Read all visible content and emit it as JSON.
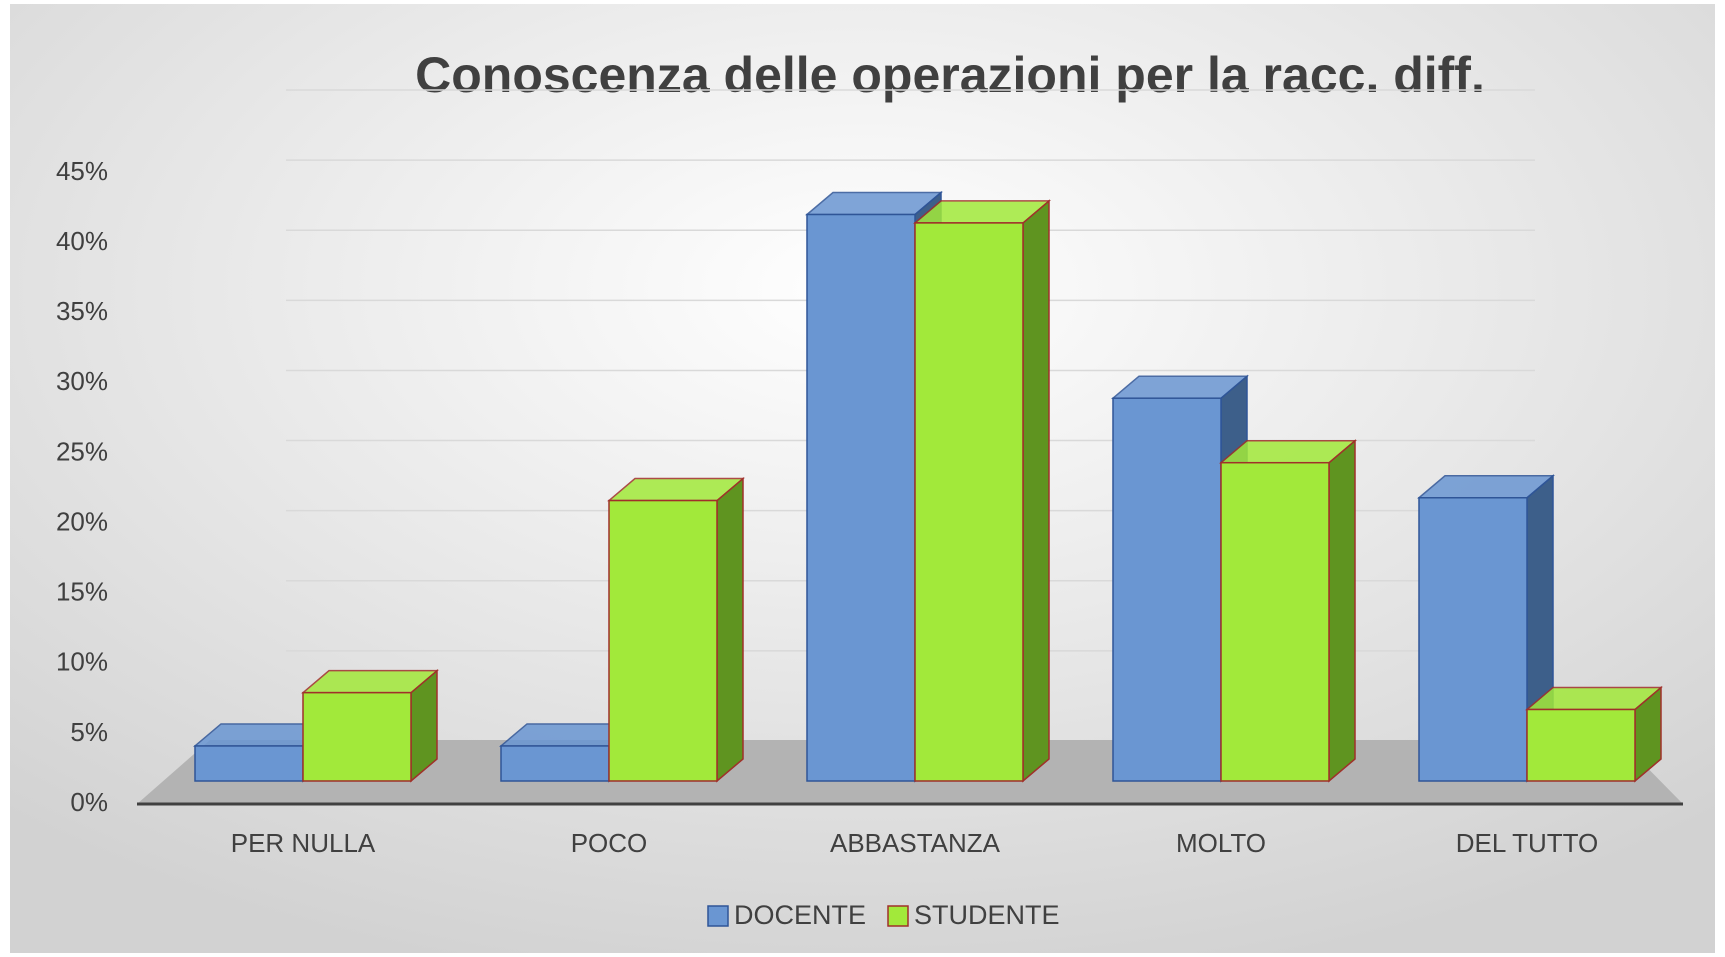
{
  "chart_data": {
    "type": "bar",
    "title": "Conoscenza delle operazioni per la racc. diff.",
    "categories": [
      "PER NULLA",
      "POCO",
      "ABBASTANZA",
      "MOLTO",
      "DEL TUTTO"
    ],
    "series": [
      {
        "name": "DOCENTE",
        "color": "#6a96d2",
        "values": [
          2.5,
          2.5,
          40.4,
          27.3,
          20.2
        ]
      },
      {
        "name": "STUDENTE",
        "color": "#a2e93a",
        "values": [
          6.3,
          20,
          39.8,
          22.7,
          5.1
        ]
      }
    ],
    "ylim": [
      0,
      45
    ],
    "yticks": [
      {
        "value": 0,
        "label": "0%"
      },
      {
        "value": 5,
        "label": "5%"
      },
      {
        "value": 10,
        "label": "10%"
      },
      {
        "value": 15,
        "label": "15%"
      },
      {
        "value": 20,
        "label": "20%"
      },
      {
        "value": 25,
        "label": "25%"
      },
      {
        "value": 30,
        "label": "30%"
      },
      {
        "value": 35,
        "label": "35%"
      },
      {
        "value": 40,
        "label": "40%"
      },
      {
        "value": 45,
        "label": "45%"
      }
    ],
    "grid": true
  }
}
